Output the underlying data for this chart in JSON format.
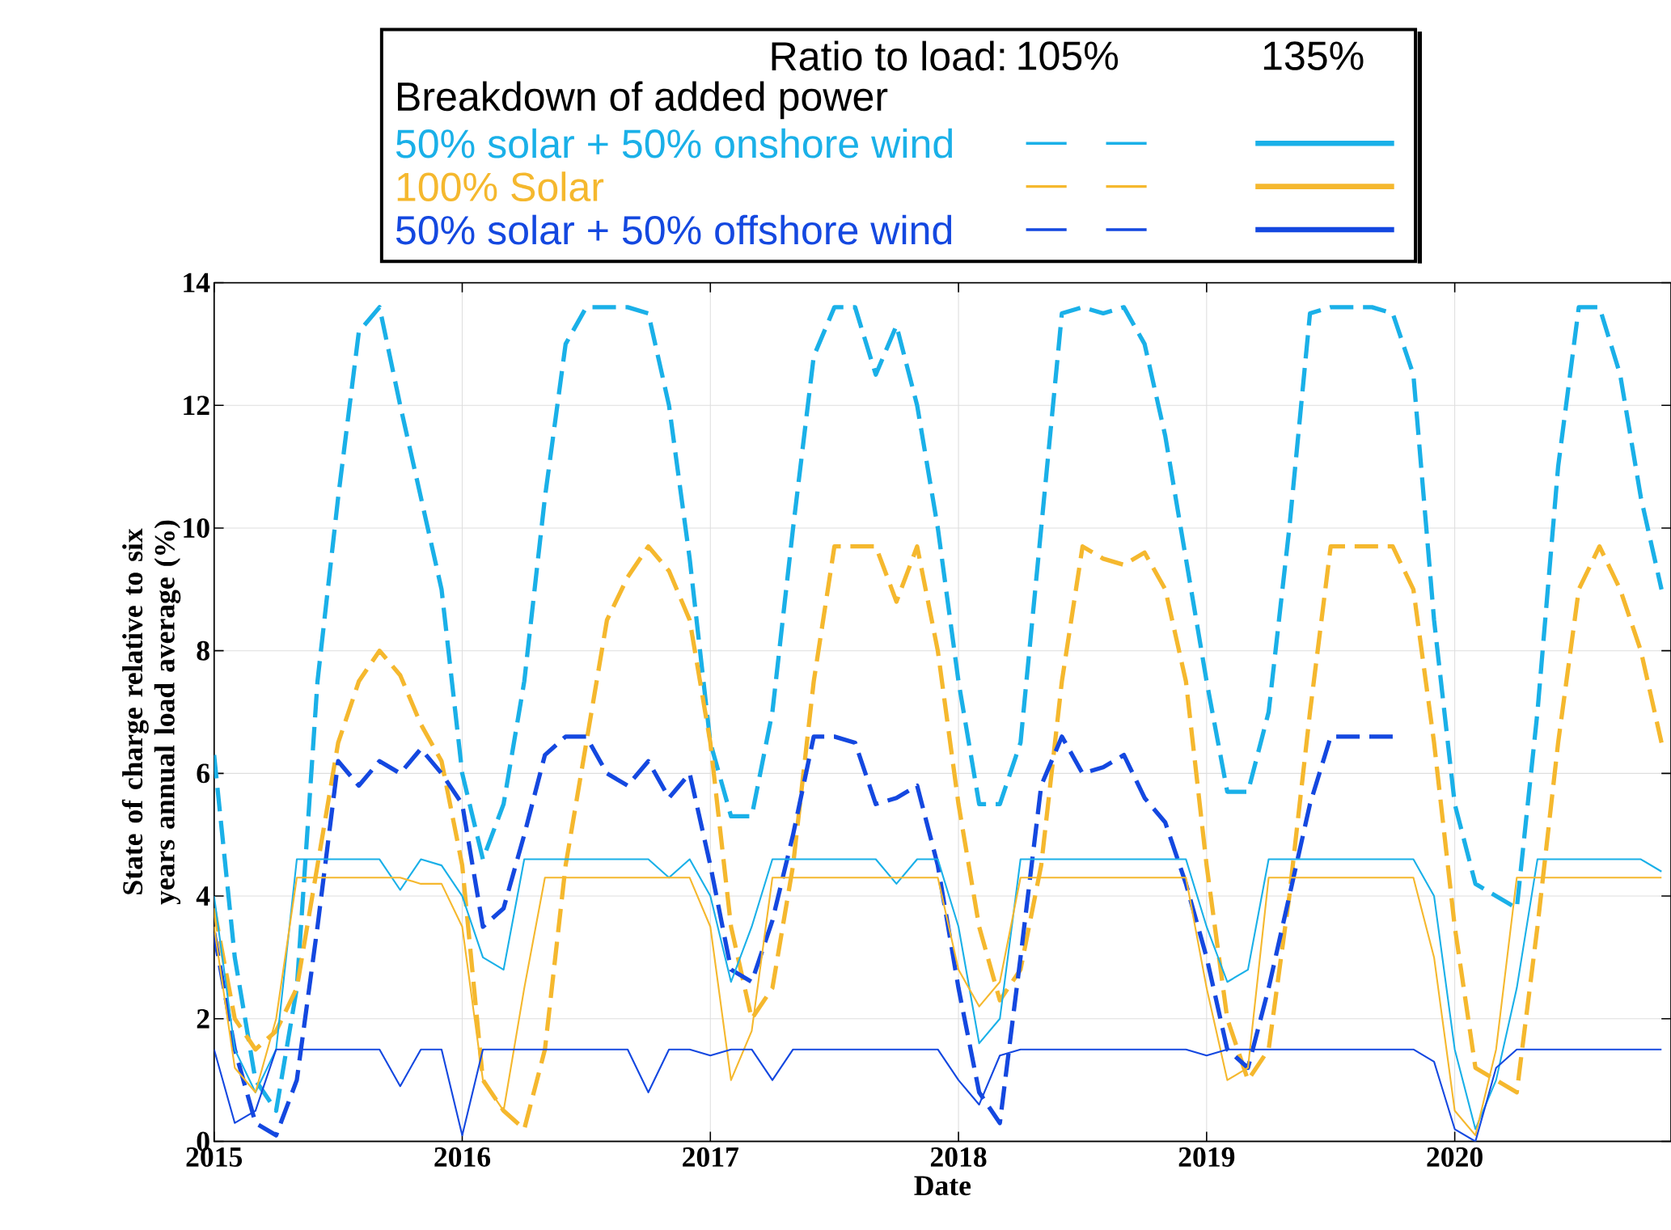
{
  "chart_data": {
    "type": "line",
    "xlabel": "Date",
    "ylabel": "State of charge relative to six years annual load average (%)",
    "legend_title": "Ratio to load:",
    "annotations": [
      "105%",
      "135%",
      "Breakdown of added power"
    ],
    "legend": "top",
    "grid": true,
    "marker": "none",
    "xlim": [
      "2015-01-01",
      "2020-11-15"
    ],
    "xticks": [
      "2015",
      "2016",
      "2017",
      "2018",
      "2019",
      "2020"
    ],
    "ylim": [
      0,
      14
    ],
    "yticks": [
      0,
      2,
      4,
      6,
      8,
      10,
      12,
      14
    ],
    "x": [
      "2015-01",
      "2015-02",
      "2015-03",
      "2015-04",
      "2015-05",
      "2015-06",
      "2015-07",
      "2015-08",
      "2015-09",
      "2015-10",
      "2015-11",
      "2015-12",
      "2016-01",
      "2016-02",
      "2016-03",
      "2016-04",
      "2016-05",
      "2016-06",
      "2016-07",
      "2016-08",
      "2016-09",
      "2016-10",
      "2016-11",
      "2016-12",
      "2017-01",
      "2017-02",
      "2017-03",
      "2017-04",
      "2017-05",
      "2017-06",
      "2017-07",
      "2017-08",
      "2017-09",
      "2017-10",
      "2017-11",
      "2017-12",
      "2018-01",
      "2018-02",
      "2018-03",
      "2018-04",
      "2018-05",
      "2018-06",
      "2018-07",
      "2018-08",
      "2018-09",
      "2018-10",
      "2018-11",
      "2018-12",
      "2019-01",
      "2019-02",
      "2019-03",
      "2019-04",
      "2019-05",
      "2019-06",
      "2019-07",
      "2019-08",
      "2019-09",
      "2019-10",
      "2019-11",
      "2019-12",
      "2020-01",
      "2020-02",
      "2020-03",
      "2020-04",
      "2020-05",
      "2020-06",
      "2020-07",
      "2020-08",
      "2020-09",
      "2020-10",
      "2020-11"
    ],
    "series": [
      {
        "name": "50% solar + 50% onshore wind",
        "color": "#1ab0e8",
        "line_style": "dashed",
        "values": [
          6.3,
          3.0,
          1.0,
          0.5,
          2.5,
          7.5,
          10.5,
          13.2,
          13.6,
          12.0,
          10.5,
          9.0,
          6.0,
          4.6,
          5.5,
          7.5,
          10.5,
          13.0,
          13.6,
          13.6,
          13.6,
          13.5,
          12.0,
          9.5,
          6.5,
          5.3,
          5.3,
          7.0,
          10.0,
          12.8,
          13.6,
          13.6,
          12.5,
          13.3,
          12.0,
          10.0,
          7.5,
          5.5,
          5.5,
          6.5,
          10.0,
          13.5,
          13.6,
          13.5,
          13.6,
          13.0,
          11.5,
          9.5,
          7.5,
          5.7,
          5.7,
          7.0,
          10.0,
          13.5,
          13.6,
          13.6,
          13.6,
          13.5,
          12.5,
          8.5,
          5.5,
          4.2,
          4.0,
          3.8,
          7.0,
          11.0,
          13.6,
          13.6,
          12.5,
          10.5,
          9.0
        ]
      },
      {
        "name": "100% Solar",
        "color": "#f5b82e",
        "line_style": "dashed",
        "values": [
          3.8,
          2.0,
          1.5,
          1.8,
          2.5,
          4.5,
          6.5,
          7.5,
          8.0,
          7.6,
          6.8,
          6.2,
          4.5,
          1.0,
          0.5,
          0.2,
          1.5,
          4.5,
          6.5,
          8.5,
          9.2,
          9.7,
          9.3,
          8.5,
          6.5,
          3.5,
          2.0,
          2.5,
          4.5,
          7.5,
          9.7,
          9.7,
          9.7,
          8.8,
          9.7,
          8.0,
          5.5,
          3.5,
          2.3,
          2.8,
          4.5,
          7.5,
          9.7,
          9.5,
          9.4,
          9.6,
          9.0,
          7.5,
          4.5,
          2.0,
          1.0,
          1.5,
          4.0,
          7.0,
          9.7,
          9.7,
          9.7,
          9.7,
          9.0,
          6.5,
          3.5,
          1.2,
          1.0,
          0.8,
          3.5,
          6.5,
          9.0,
          9.7,
          9.0,
          8.0,
          6.5
        ]
      },
      {
        "name": "50% solar + 50% offshore wind",
        "color": "#1448e0",
        "line_style": "dashed",
        "values": [
          3.4,
          1.5,
          0.3,
          0.1,
          1.0,
          3.5,
          6.2,
          5.8,
          6.2,
          6.0,
          6.4,
          6.0,
          5.5,
          3.5,
          3.8,
          5.0,
          6.3,
          6.6,
          6.6,
          6.0,
          5.8,
          6.2,
          5.6,
          6.0,
          4.5,
          2.8,
          2.6,
          3.6,
          5.0,
          6.6,
          6.6,
          6.5,
          5.5,
          5.6,
          5.8,
          4.5,
          2.5,
          0.8,
          0.3,
          3.0,
          5.8,
          6.6,
          6.0,
          6.1,
          6.3,
          5.6,
          5.2,
          4.2,
          3.0,
          1.5,
          1.2,
          2.5,
          4.0,
          5.5,
          6.6,
          6.6,
          6.6,
          6.6,
          null,
          null,
          null,
          null,
          null,
          null,
          null,
          null,
          null,
          null,
          null,
          null,
          null
        ]
      },
      {
        "color": "#1ab0e8",
        "line_style": "solid",
        "values": [
          4.0,
          1.5,
          0.8,
          1.5,
          4.6,
          4.6,
          4.6,
          4.6,
          4.6,
          4.1,
          4.6,
          4.5,
          4.0,
          3.0,
          2.8,
          4.6,
          4.6,
          4.6,
          4.6,
          4.6,
          4.6,
          4.6,
          4.3,
          4.6,
          4.0,
          2.6,
          3.5,
          4.6,
          4.6,
          4.6,
          4.6,
          4.6,
          4.6,
          4.2,
          4.6,
          4.6,
          3.5,
          1.6,
          2.0,
          4.6,
          4.6,
          4.6,
          4.6,
          4.6,
          4.6,
          4.6,
          4.6,
          4.6,
          3.5,
          2.6,
          2.8,
          4.6,
          4.6,
          4.6,
          4.6,
          4.6,
          4.6,
          4.6,
          4.6,
          4.0,
          1.5,
          0.2,
          1.0,
          2.5,
          4.6,
          4.6,
          4.6,
          4.6,
          4.6,
          4.6,
          4.4
        ]
      },
      {
        "color": "#f5b82e",
        "line_style": "solid",
        "values": [
          3.5,
          1.2,
          0.8,
          2.0,
          4.3,
          4.3,
          4.3,
          4.3,
          4.3,
          4.3,
          4.2,
          4.2,
          3.5,
          1.0,
          0.5,
          2.5,
          4.3,
          4.3,
          4.3,
          4.3,
          4.3,
          4.3,
          4.3,
          4.3,
          3.5,
          1.0,
          1.8,
          4.3,
          4.3,
          4.3,
          4.3,
          4.3,
          4.3,
          4.3,
          4.3,
          4.3,
          2.8,
          2.2,
          2.6,
          4.3,
          4.3,
          4.3,
          4.3,
          4.3,
          4.3,
          4.3,
          4.3,
          4.3,
          2.5,
          1.0,
          1.2,
          4.3,
          4.3,
          4.3,
          4.3,
          4.3,
          4.3,
          4.3,
          4.3,
          3.0,
          0.5,
          0.1,
          1.5,
          4.3,
          4.3,
          4.3,
          4.3,
          4.3,
          4.3,
          4.3,
          4.3
        ]
      },
      {
        "color": "#1448e0",
        "line_style": "solid",
        "values": [
          1.5,
          0.3,
          0.5,
          1.5,
          1.5,
          1.5,
          1.5,
          1.5,
          1.5,
          0.9,
          1.5,
          1.5,
          0.1,
          1.5,
          1.5,
          1.5,
          1.5,
          1.5,
          1.5,
          1.5,
          1.5,
          0.8,
          1.5,
          1.5,
          1.4,
          1.5,
          1.5,
          1.0,
          1.5,
          1.5,
          1.5,
          1.5,
          1.5,
          1.5,
          1.5,
          1.5,
          1.0,
          0.6,
          1.4,
          1.5,
          1.5,
          1.5,
          1.5,
          1.5,
          1.5,
          1.5,
          1.5,
          1.5,
          1.4,
          1.5,
          1.5,
          1.5,
          1.5,
          1.5,
          1.5,
          1.5,
          1.5,
          1.5,
          1.5,
          1.3,
          0.2,
          0.0,
          1.2,
          1.5,
          1.5,
          1.5,
          1.5,
          1.5,
          1.5,
          1.5,
          1.5
        ]
      }
    ]
  }
}
